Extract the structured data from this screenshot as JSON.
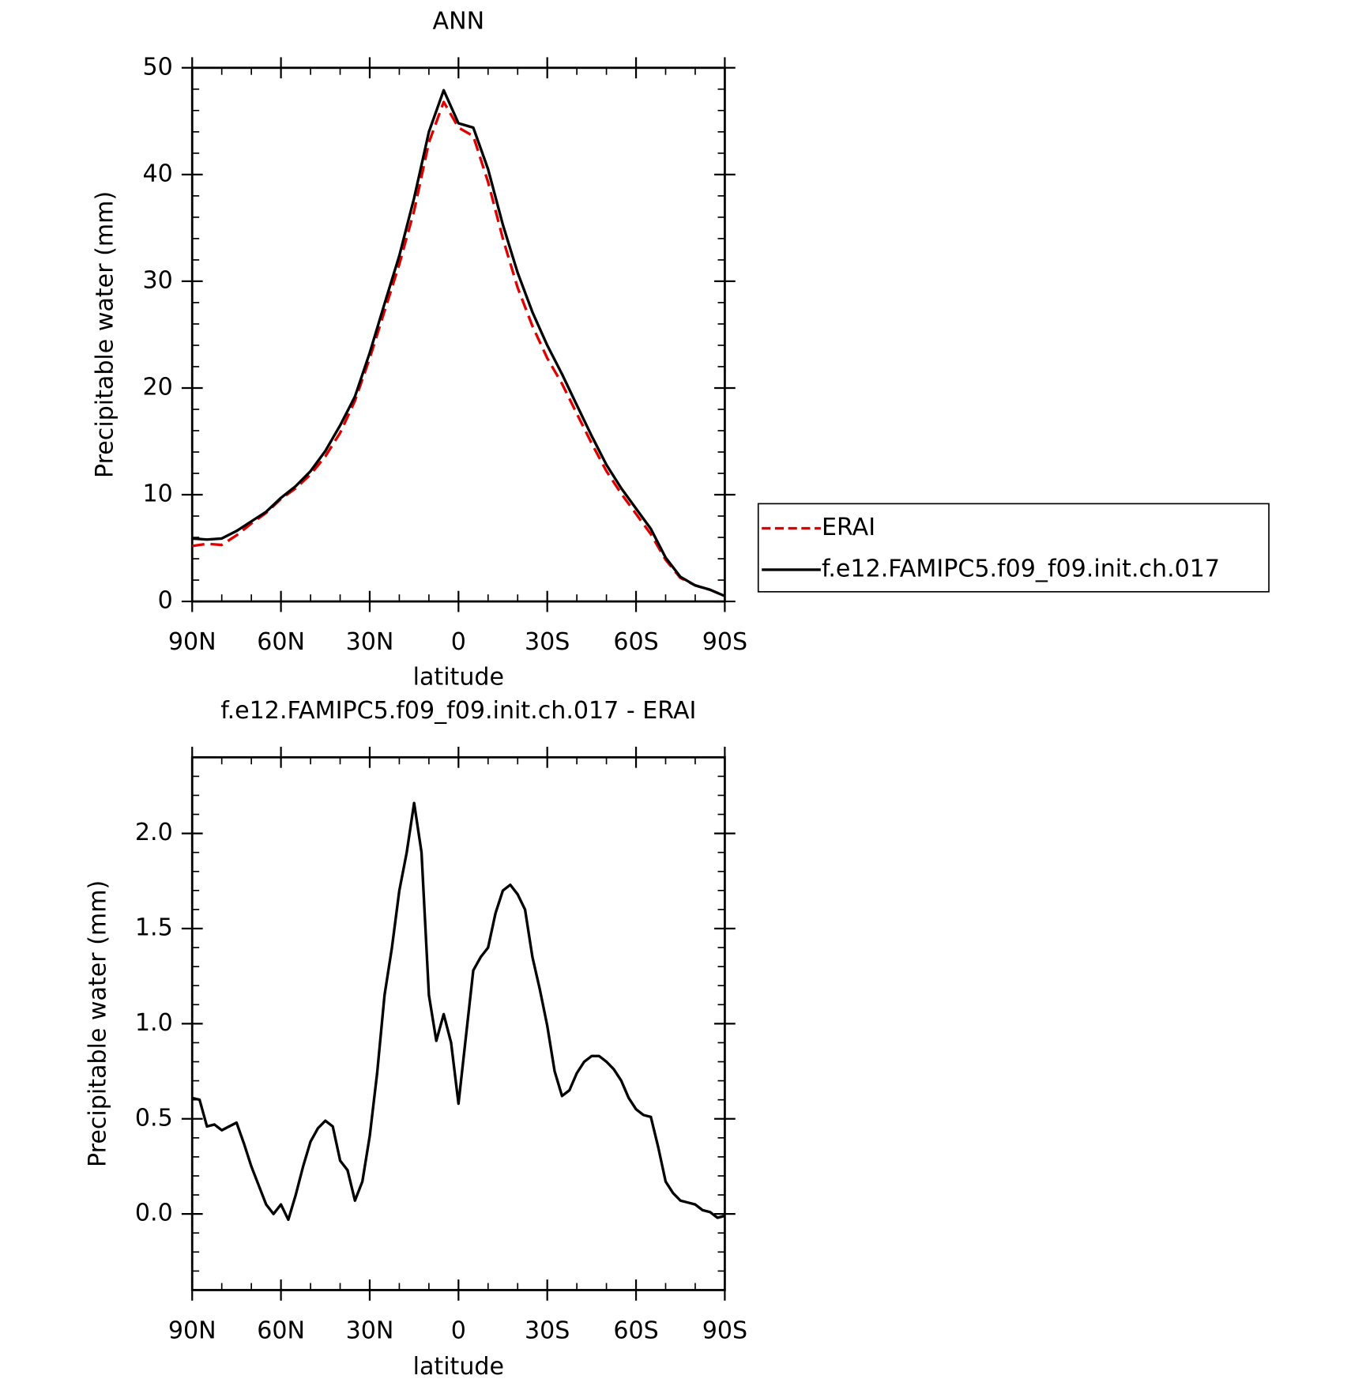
{
  "chart_data": [
    {
      "type": "line",
      "title": "ANN",
      "xlabel": "latitude",
      "ylabel": "Precipitable water (mm)",
      "x": [
        90,
        85,
        80,
        75,
        70,
        65,
        60,
        55,
        50,
        45,
        40,
        35,
        30,
        25,
        20,
        15,
        10,
        5,
        0,
        -5,
        -10,
        -15,
        -20,
        -25,
        -30,
        -35,
        -40,
        -45,
        -50,
        -55,
        -60,
        -65,
        -70,
        -75,
        -80,
        -85,
        -90
      ],
      "series": [
        {
          "name": "ERAI",
          "color": "#e00000",
          "dashed": true,
          "values": [
            5.2,
            5.4,
            5.3,
            6.2,
            7.3,
            8.3,
            9.6,
            10.6,
            11.9,
            13.6,
            15.8,
            18.8,
            22.8,
            27.2,
            31.6,
            36.6,
            43.0,
            46.8,
            44.4,
            43.6,
            39.3,
            34.0,
            29.4,
            25.8,
            22.8,
            20.4,
            17.6,
            14.8,
            12.2,
            10.1,
            8.2,
            6.3,
            3.9,
            2.2,
            1.5,
            1.1,
            0.5
          ]
        },
        {
          "name": "f.e12.FAMIPC5.f09_f09.init.ch.017",
          "color": "#000000",
          "dashed": false,
          "values": [
            5.9,
            5.8,
            5.9,
            6.6,
            7.5,
            8.4,
            9.7,
            10.8,
            12.2,
            14.1,
            16.5,
            19.2,
            23.3,
            27.9,
            32.4,
            37.8,
            44.0,
            47.9,
            44.8,
            44.4,
            40.5,
            35.3,
            30.8,
            27.1,
            24.0,
            21.3,
            18.4,
            15.5,
            12.8,
            10.6,
            8.7,
            6.8,
            4.1,
            2.3,
            1.5,
            1.1,
            0.5
          ]
        }
      ],
      "xlim": [
        90,
        -90
      ],
      "xticks": [
        {
          "value": 90,
          "label": "90N"
        },
        {
          "value": 60,
          "label": "60N"
        },
        {
          "value": 30,
          "label": "30N"
        },
        0,
        {
          "value": -30,
          "label": "30S"
        },
        {
          "value": -60,
          "label": "60S"
        },
        {
          "value": -90,
          "label": "90S"
        }
      ],
      "ylim": [
        0,
        50
      ],
      "yticks": [
        0,
        10,
        20,
        30,
        40,
        50
      ],
      "legend": "right"
    },
    {
      "type": "line",
      "title": "f.e12.FAMIPC5.f09_f09.init.ch.017 - ERAI",
      "xlabel": "latitude",
      "ylabel": "Precipitable water (mm)",
      "color": "#000000",
      "x": [
        90,
        87.5,
        85,
        82.5,
        80,
        77.5,
        75,
        72.5,
        70,
        67.5,
        65,
        62.5,
        60,
        57.5,
        55,
        52.5,
        50,
        47.5,
        45,
        42.5,
        40,
        37.5,
        35,
        32.5,
        30,
        27.5,
        25,
        22.5,
        20,
        17.5,
        15,
        12.5,
        10,
        7.5,
        5,
        2.5,
        0,
        -2.5,
        -5,
        -7.5,
        -10,
        -12.5,
        -15,
        -17.5,
        -20,
        -22.5,
        -25,
        -27.5,
        -30,
        -32.5,
        -35,
        -37.5,
        -40,
        -42.5,
        -45,
        -47.5,
        -50,
        -52.5,
        -55,
        -57.5,
        -60,
        -62.5,
        -65,
        -67.5,
        -70,
        -72.5,
        -75,
        -77.5,
        -80,
        -82.5,
        -85,
        -87.5,
        -90
      ],
      "values": [
        0.61,
        0.6,
        0.46,
        0.47,
        0.44,
        0.46,
        0.48,
        0.37,
        0.25,
        0.15,
        0.05,
        0.0,
        0.05,
        -0.03,
        0.1,
        0.25,
        0.38,
        0.45,
        0.49,
        0.46,
        0.28,
        0.23,
        0.07,
        0.17,
        0.41,
        0.74,
        1.15,
        1.4,
        1.7,
        1.9,
        2.16,
        1.9,
        1.15,
        0.91,
        1.05,
        0.9,
        0.58,
        0.93,
        1.28,
        1.35,
        1.4,
        1.58,
        1.7,
        1.73,
        1.68,
        1.6,
        1.35,
        1.18,
        0.99,
        0.75,
        0.62,
        0.65,
        0.74,
        0.8,
        0.83,
        0.83,
        0.8,
        0.76,
        0.7,
        0.61,
        0.55,
        0.52,
        0.51,
        0.35,
        0.17,
        0.11,
        0.07,
        0.06,
        0.05,
        0.02,
        0.01,
        -0.02,
        -0.01
      ],
      "xlim": [
        90,
        -90
      ],
      "xticks": [
        {
          "value": 90,
          "label": "90N"
        },
        {
          "value": 60,
          "label": "60N"
        },
        {
          "value": 30,
          "label": "30N"
        },
        0,
        {
          "value": -30,
          "label": "30S"
        },
        {
          "value": -60,
          "label": "60S"
        },
        {
          "value": -90,
          "label": "90S"
        }
      ],
      "ylim": [
        -0.4,
        2.4
      ],
      "yticks": [
        {
          "value": 0,
          "label": "0.0"
        },
        0.5,
        {
          "value": 1,
          "label": "1.0"
        },
        1.5,
        {
          "value": 2,
          "label": "2.0"
        }
      ]
    }
  ]
}
